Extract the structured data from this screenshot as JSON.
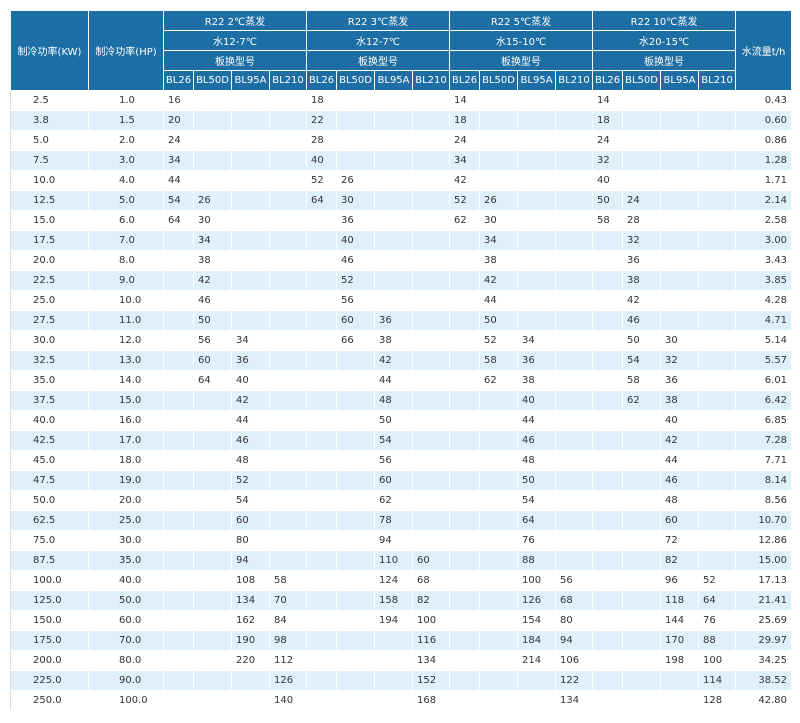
{
  "table": {
    "columns_left": [
      "制冷功率(KW)",
      "制冷功率(HP)"
    ],
    "column_right": "水流量t/h",
    "groups": [
      {
        "title": "R22 2℃蒸发",
        "water": "水12-7℃",
        "model_label": "板换型号",
        "models": [
          "BL26",
          "BL50D",
          "BL95A",
          "BL210"
        ]
      },
      {
        "title": "R22 3℃蒸发",
        "water": "水12-7℃",
        "model_label": "板换型号",
        "models": [
          "BL26",
          "BL50D",
          "BL95A",
          "BL210"
        ]
      },
      {
        "title": "R22 5℃蒸发",
        "water": "水15-10℃",
        "model_label": "板换型号",
        "models": [
          "BL26",
          "BL50D",
          "BL95A",
          "BL210"
        ]
      },
      {
        "title": "R22 10℃蒸发",
        "water": "水20-15℃",
        "model_label": "板换型号",
        "models": [
          "BL26",
          "BL50D",
          "BL95A",
          "BL210"
        ]
      }
    ],
    "rows": [
      [
        "2.5",
        "1.0",
        "16",
        null,
        null,
        null,
        "18",
        null,
        null,
        null,
        "14",
        null,
        null,
        null,
        "14",
        null,
        null,
        null,
        "0.43"
      ],
      [
        "3.8",
        "1.5",
        "20",
        null,
        null,
        null,
        "22",
        null,
        null,
        null,
        "18",
        null,
        null,
        null,
        "18",
        null,
        null,
        null,
        "0.60"
      ],
      [
        "5.0",
        "2.0",
        "24",
        null,
        null,
        null,
        "28",
        null,
        null,
        null,
        "24",
        null,
        null,
        null,
        "24",
        null,
        null,
        null,
        "0.86"
      ],
      [
        "7.5",
        "3.0",
        "34",
        null,
        null,
        null,
        "40",
        null,
        null,
        null,
        "34",
        null,
        null,
        null,
        "32",
        null,
        null,
        null,
        "1.28"
      ],
      [
        "10.0",
        "4.0",
        "44",
        null,
        null,
        null,
        "52",
        "26",
        null,
        null,
        "42",
        null,
        null,
        null,
        "40",
        null,
        null,
        null,
        "1.71"
      ],
      [
        "12.5",
        "5.0",
        "54",
        "26",
        null,
        null,
        "64",
        "30",
        null,
        null,
        "52",
        "26",
        null,
        null,
        "50",
        "24",
        null,
        null,
        "2.14"
      ],
      [
        "15.0",
        "6.0",
        "64",
        "30",
        null,
        null,
        null,
        "36",
        null,
        null,
        "62",
        "30",
        null,
        null,
        "58",
        "28",
        null,
        null,
        "2.58"
      ],
      [
        "17.5",
        "7.0",
        null,
        "34",
        null,
        null,
        null,
        "40",
        null,
        null,
        null,
        "34",
        null,
        null,
        null,
        "32",
        null,
        null,
        "3.00"
      ],
      [
        "20.0",
        "8.0",
        null,
        "38",
        null,
        null,
        null,
        "46",
        null,
        null,
        null,
        "38",
        null,
        null,
        null,
        "36",
        null,
        null,
        "3.43"
      ],
      [
        "22.5",
        "9.0",
        null,
        "42",
        null,
        null,
        null,
        "52",
        null,
        null,
        null,
        "42",
        null,
        null,
        null,
        "38",
        null,
        null,
        "3.85"
      ],
      [
        "25.0",
        "10.0",
        null,
        "46",
        null,
        null,
        null,
        "56",
        null,
        null,
        null,
        "44",
        null,
        null,
        null,
        "42",
        null,
        null,
        "4.28"
      ],
      [
        "27.5",
        "11.0",
        null,
        "50",
        null,
        null,
        null,
        "60",
        "36",
        null,
        null,
        "50",
        null,
        null,
        null,
        "46",
        null,
        null,
        "4.71"
      ],
      [
        "30.0",
        "12.0",
        null,
        "56",
        "34",
        null,
        null,
        "66",
        "38",
        null,
        null,
        "52",
        "34",
        null,
        null,
        "50",
        "30",
        null,
        "5.14"
      ],
      [
        "32.5",
        "13.0",
        null,
        "60",
        "36",
        null,
        null,
        null,
        "42",
        null,
        null,
        "58",
        "36",
        null,
        null,
        "54",
        "32",
        null,
        "5.57"
      ],
      [
        "35.0",
        "14.0",
        null,
        "64",
        "40",
        null,
        null,
        null,
        "44",
        null,
        null,
        "62",
        "38",
        null,
        null,
        "58",
        "36",
        null,
        "6.01"
      ],
      [
        "37.5",
        "15.0",
        null,
        null,
        "42",
        null,
        null,
        null,
        "48",
        null,
        null,
        null,
        "40",
        null,
        null,
        "62",
        "38",
        null,
        "6.42"
      ],
      [
        "40.0",
        "16.0",
        null,
        null,
        "44",
        null,
        null,
        null,
        "50",
        null,
        null,
        null,
        "44",
        null,
        null,
        null,
        "40",
        null,
        "6.85"
      ],
      [
        "42.5",
        "17.0",
        null,
        null,
        "46",
        null,
        null,
        null,
        "54",
        null,
        null,
        null,
        "46",
        null,
        null,
        null,
        "42",
        null,
        "7.28"
      ],
      [
        "45.0",
        "18.0",
        null,
        null,
        "48",
        null,
        null,
        null,
        "56",
        null,
        null,
        null,
        "48",
        null,
        null,
        null,
        "44",
        null,
        "7.71"
      ],
      [
        "47.5",
        "19.0",
        null,
        null,
        "52",
        null,
        null,
        null,
        "60",
        null,
        null,
        null,
        "50",
        null,
        null,
        null,
        "46",
        null,
        "8.14"
      ],
      [
        "50.0",
        "20.0",
        null,
        null,
        "54",
        null,
        null,
        null,
        "62",
        null,
        null,
        null,
        "54",
        null,
        null,
        null,
        "48",
        null,
        "8.56"
      ],
      [
        "62.5",
        "25.0",
        null,
        null,
        "60",
        null,
        null,
        null,
        "78",
        null,
        null,
        null,
        "64",
        null,
        null,
        null,
        "60",
        null,
        "10.70"
      ],
      [
        "75.0",
        "30.0",
        null,
        null,
        "80",
        null,
        null,
        null,
        "94",
        null,
        null,
        null,
        "76",
        null,
        null,
        null,
        "72",
        null,
        "12.86"
      ],
      [
        "87.5",
        "35.0",
        null,
        null,
        "94",
        null,
        null,
        null,
        "110",
        "60",
        null,
        null,
        "88",
        null,
        null,
        null,
        "82",
        null,
        "15.00"
      ],
      [
        "100.0",
        "40.0",
        null,
        null,
        "108",
        "58",
        null,
        null,
        "124",
        "68",
        null,
        null,
        "100",
        "56",
        null,
        null,
        "96",
        "52",
        "17.13"
      ],
      [
        "125.0",
        "50.0",
        null,
        null,
        "134",
        "70",
        null,
        null,
        "158",
        "82",
        null,
        null,
        "126",
        "68",
        null,
        null,
        "118",
        "64",
        "21.41"
      ],
      [
        "150.0",
        "60.0",
        null,
        null,
        "162",
        "84",
        null,
        null,
        "194",
        "100",
        null,
        null,
        "154",
        "80",
        null,
        null,
        "144",
        "76",
        "25.69"
      ],
      [
        "175.0",
        "70.0",
        null,
        null,
        "190",
        "98",
        null,
        null,
        null,
        "116",
        null,
        null,
        "184",
        "94",
        null,
        null,
        "170",
        "88",
        "29.97"
      ],
      [
        "200.0",
        "80.0",
        null,
        null,
        "220",
        "112",
        null,
        null,
        null,
        "134",
        null,
        null,
        "214",
        "106",
        null,
        null,
        "198",
        "100",
        "34.25"
      ],
      [
        "225.0",
        "90.0",
        null,
        null,
        null,
        "126",
        null,
        null,
        null,
        "152",
        null,
        null,
        null,
        "122",
        null,
        null,
        null,
        "114",
        "38.52"
      ],
      [
        "250.0",
        "100.0",
        null,
        null,
        null,
        "140",
        null,
        null,
        null,
        "168",
        null,
        null,
        null,
        "134",
        null,
        null,
        null,
        "128",
        "42.80"
      ]
    ]
  }
}
